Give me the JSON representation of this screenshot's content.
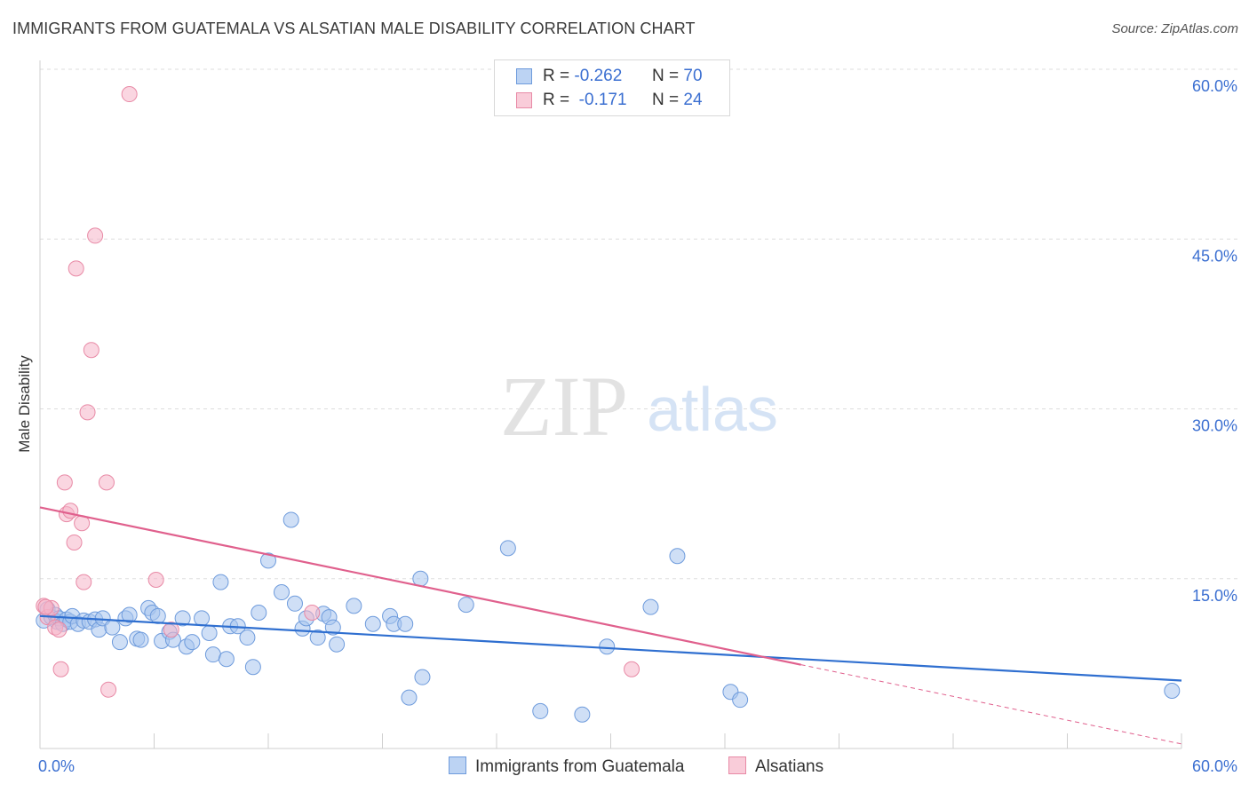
{
  "title": "IMMIGRANTS FROM GUATEMALA VS ALSATIAN MALE DISABILITY CORRELATION CHART",
  "source": "Source: ZipAtlas.com",
  "watermark": {
    "zip": "ZIP",
    "atlas": "atlas"
  },
  "legend_top": [
    {
      "r_label": "R =",
      "r_value": "-0.262",
      "n_label": "N =",
      "n_value": "70",
      "color": "#a8c4ee"
    },
    {
      "r_label": "R =",
      "r_value": "-0.171",
      "n_label": "N =",
      "n_value": "24",
      "color": "#f5b5c8"
    }
  ],
  "colors": {
    "blue_fill": "#a8c4ee",
    "blue_stroke": "#6e9bdc",
    "blue_line": "#2f6fd0",
    "pink_fill": "#f5b5c8",
    "pink_stroke": "#e88aa6",
    "pink_line": "#e0608d",
    "grid": "#dddddd",
    "tick_text": "#3b6fd1"
  },
  "chart_data": {
    "type": "scatter",
    "title": "IMMIGRANTS FROM GUATEMALA VS ALSATIAN MALE DISABILITY CORRELATION CHART",
    "xlabel": "",
    "ylabel": "Male Disability",
    "xlim": [
      0,
      60
    ],
    "ylim": [
      0,
      60
    ],
    "x_tick_labels": [
      "0.0%",
      "60.0%"
    ],
    "y_ticks": [
      15,
      30,
      45,
      60
    ],
    "y_tick_labels": [
      "15.0%",
      "30.0%",
      "45.0%",
      "60.0%"
    ],
    "series": [
      {
        "name": "Immigrants from Guatemala",
        "color": "#a8c4ee",
        "r": -0.262,
        "n": 70,
        "trend": {
          "x": [
            0,
            60
          ],
          "y": [
            11.7,
            6.0
          ]
        },
        "points": [
          [
            0.2,
            11.3
          ],
          [
            0.4,
            12.3
          ],
          [
            0.6,
            11.6
          ],
          [
            0.8,
            11.8
          ],
          [
            0.9,
            11.2
          ],
          [
            1.0,
            11.5
          ],
          [
            1.2,
            11.0
          ],
          [
            1.4,
            11.4
          ],
          [
            1.6,
            11.2
          ],
          [
            1.7,
            11.7
          ],
          [
            2.0,
            11.0
          ],
          [
            2.3,
            11.3
          ],
          [
            2.6,
            11.2
          ],
          [
            2.9,
            11.4
          ],
          [
            3.1,
            10.5
          ],
          [
            3.3,
            11.5
          ],
          [
            3.8,
            10.7
          ],
          [
            4.2,
            9.4
          ],
          [
            4.5,
            11.5
          ],
          [
            4.7,
            11.8
          ],
          [
            5.1,
            9.7
          ],
          [
            5.3,
            9.6
          ],
          [
            5.7,
            12.4
          ],
          [
            5.9,
            12.0
          ],
          [
            6.2,
            11.7
          ],
          [
            6.4,
            9.5
          ],
          [
            6.8,
            10.3
          ],
          [
            7.0,
            9.6
          ],
          [
            7.5,
            11.5
          ],
          [
            7.7,
            9.0
          ],
          [
            8.0,
            9.4
          ],
          [
            8.5,
            11.5
          ],
          [
            8.9,
            10.2
          ],
          [
            9.1,
            8.3
          ],
          [
            9.5,
            14.7
          ],
          [
            9.8,
            7.9
          ],
          [
            10.0,
            10.8
          ],
          [
            10.4,
            10.8
          ],
          [
            10.9,
            9.8
          ],
          [
            11.2,
            7.2
          ],
          [
            11.5,
            12.0
          ],
          [
            12.0,
            16.6
          ],
          [
            12.7,
            13.8
          ],
          [
            13.2,
            20.2
          ],
          [
            13.4,
            12.8
          ],
          [
            13.8,
            10.6
          ],
          [
            14.0,
            11.5
          ],
          [
            14.6,
            9.8
          ],
          [
            14.9,
            11.9
          ],
          [
            15.2,
            11.6
          ],
          [
            15.4,
            10.7
          ],
          [
            15.6,
            9.2
          ],
          [
            16.5,
            12.6
          ],
          [
            17.5,
            11.0
          ],
          [
            18.4,
            11.7
          ],
          [
            18.6,
            11.0
          ],
          [
            19.2,
            11.0
          ],
          [
            20.0,
            15.0
          ],
          [
            22.4,
            12.7
          ],
          [
            24.6,
            17.7
          ],
          [
            29.8,
            9.0
          ],
          [
            32.1,
            12.5
          ],
          [
            33.5,
            17.0
          ],
          [
            36.3,
            5.0
          ],
          [
            36.8,
            4.3
          ],
          [
            19.4,
            4.5
          ],
          [
            26.3,
            3.3
          ],
          [
            28.5,
            3.0
          ],
          [
            20.1,
            6.3
          ],
          [
            59.5,
            5.1
          ]
        ]
      },
      {
        "name": "Alsatians",
        "color": "#f5b5c8",
        "r": -0.171,
        "n": 24,
        "trend": {
          "x": [
            0,
            40
          ],
          "y": [
            21.3,
            7.4
          ]
        },
        "trend_dashed": {
          "x": [
            40,
            60
          ],
          "y": [
            7.4,
            0.4
          ]
        },
        "points": [
          [
            0.2,
            12.6
          ],
          [
            0.4,
            11.6
          ],
          [
            0.6,
            12.4
          ],
          [
            0.8,
            10.7
          ],
          [
            1.0,
            10.5
          ],
          [
            1.1,
            7.0
          ],
          [
            1.3,
            23.5
          ],
          [
            1.4,
            20.7
          ],
          [
            1.6,
            21.0
          ],
          [
            1.8,
            18.2
          ],
          [
            1.9,
            42.4
          ],
          [
            2.2,
            19.9
          ],
          [
            2.3,
            14.7
          ],
          [
            2.5,
            29.7
          ],
          [
            2.7,
            35.2
          ],
          [
            2.9,
            45.3
          ],
          [
            3.5,
            23.5
          ],
          [
            3.6,
            5.2
          ],
          [
            4.7,
            57.8
          ],
          [
            6.1,
            14.9
          ],
          [
            6.9,
            10.5
          ],
          [
            14.3,
            12.0
          ],
          [
            31.1,
            7.0
          ],
          [
            0.3,
            12.5
          ]
        ]
      }
    ]
  },
  "bottom_legend": [
    {
      "label": "Immigrants from Guatemala",
      "color": "#a8c4ee"
    },
    {
      "label": "Alsatians",
      "color": "#f5b5c8"
    }
  ]
}
